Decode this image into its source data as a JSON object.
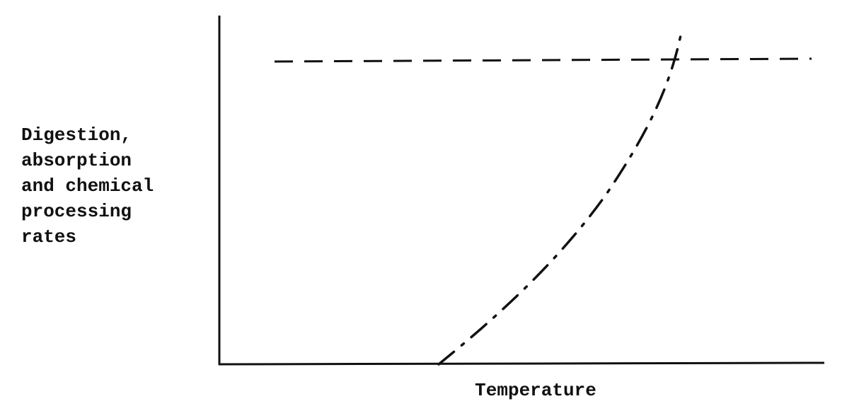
{
  "y_axis_label": {
    "lines": [
      "Digestion,",
      "absorption",
      "and chemical",
      "processing",
      "rates"
    ]
  },
  "x_axis_label": "Temperature"
}
